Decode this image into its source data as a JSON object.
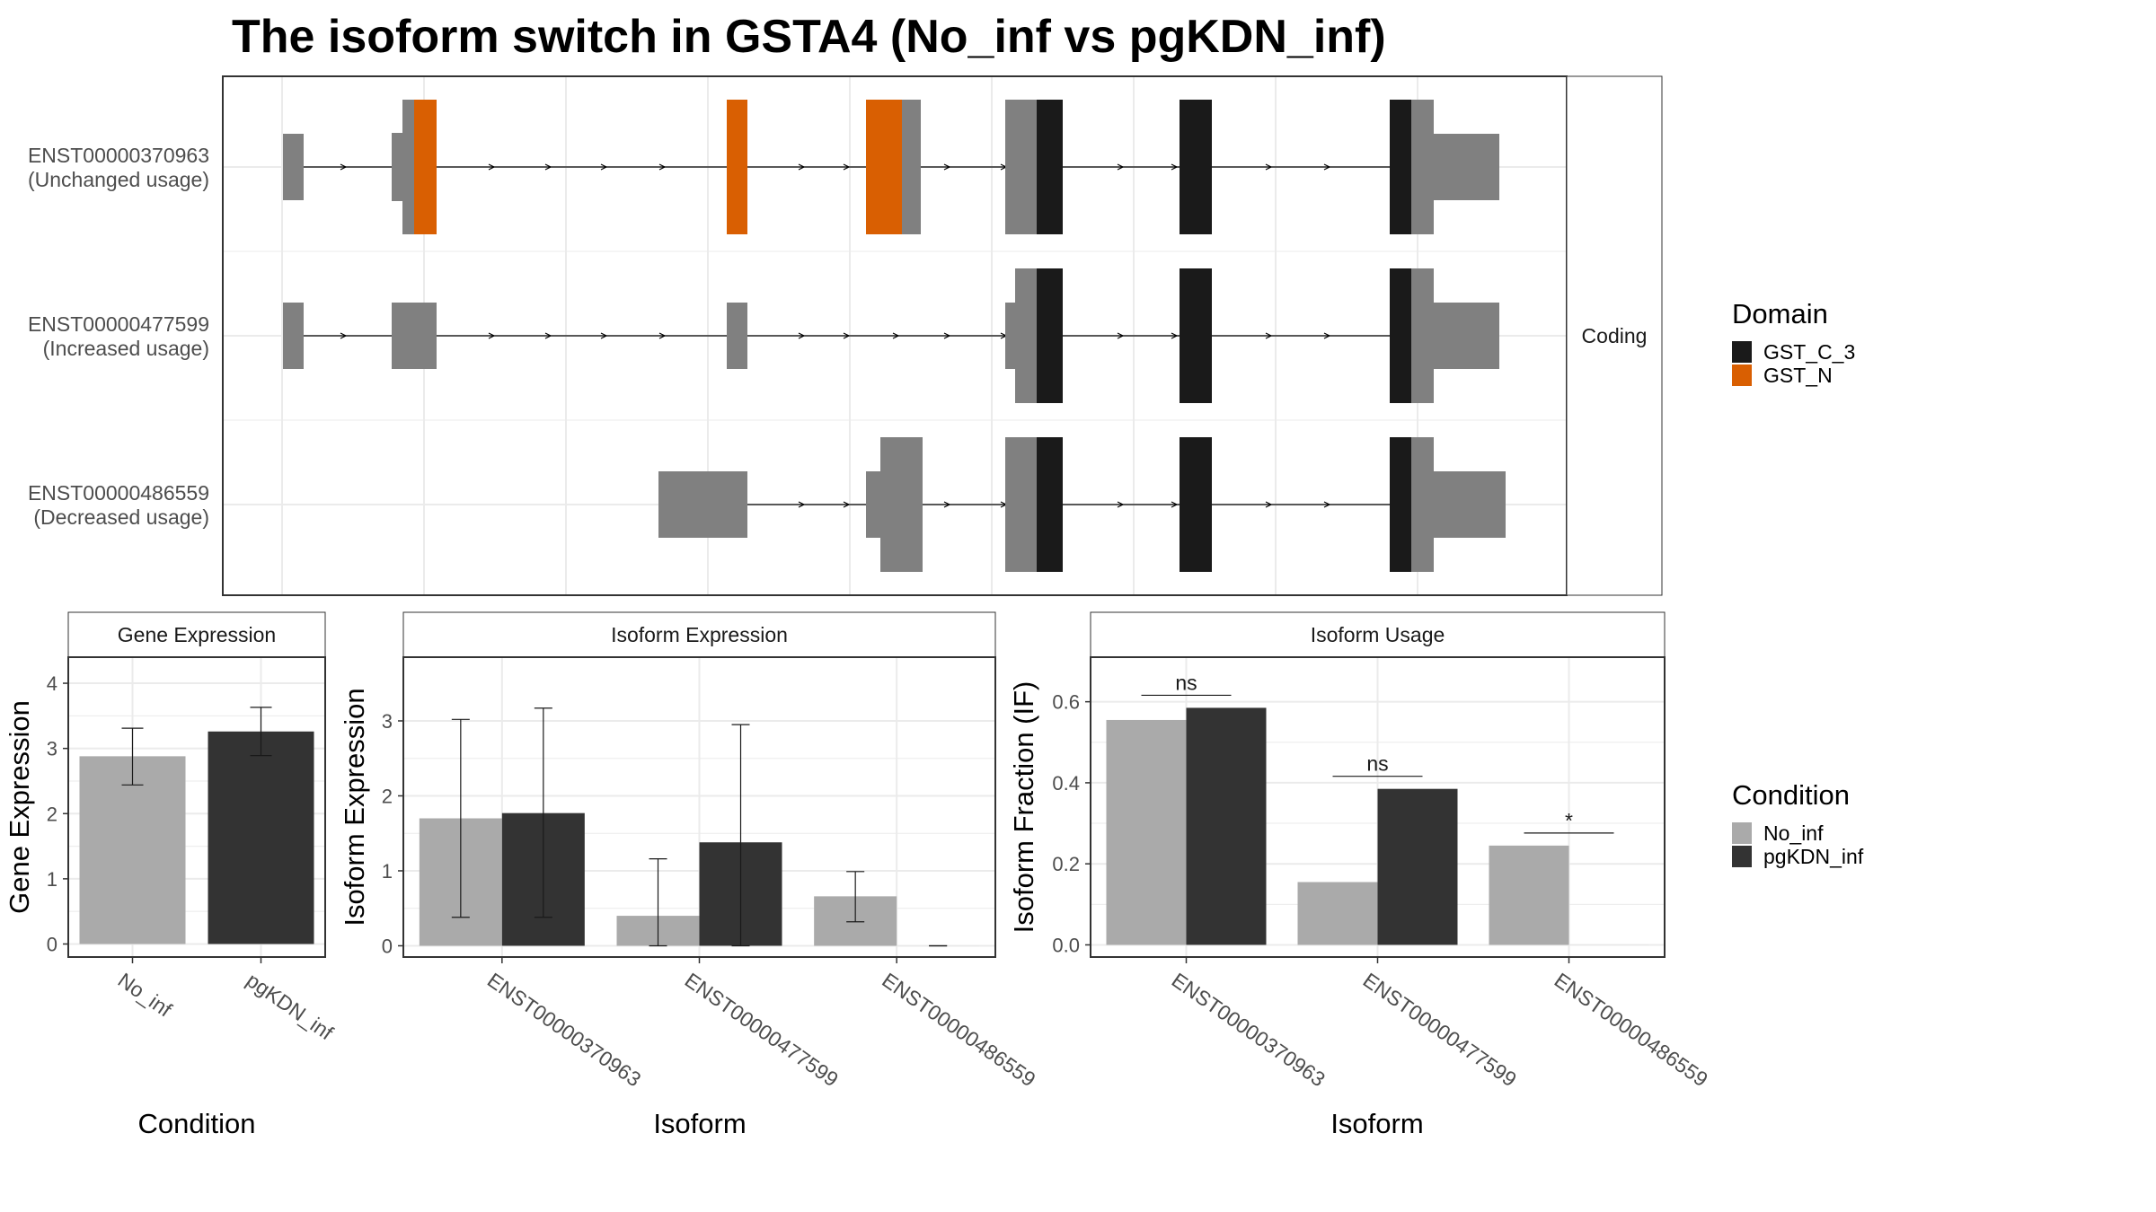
{
  "title": "The isoform switch in GSTA4 (No_inf vs pgKDN_inf)",
  "colors": {
    "gst_c_3": "#1a1a1a",
    "gst_n": "#d95f02",
    "utr": "#808080",
    "no_inf": "#aaaaaa",
    "pgkdn_inf": "#333333",
    "grid": "#ebebeb",
    "strip_bg": "#ffffff"
  },
  "chart_data": [
    {
      "type": "gene-structure",
      "strip_label": "Coding",
      "isoforms": [
        {
          "id": "ENST00000370963",
          "usage": "(Unchanged usage)"
        },
        {
          "id": "ENST00000477599",
          "usage": "(Increased usage)"
        },
        {
          "id": "ENST00000486559",
          "usage": "(Decreased usage)"
        }
      ],
      "legend": {
        "title": "Domain",
        "entries": [
          "GST_C_3",
          "GST_N"
        ]
      }
    },
    {
      "type": "bar",
      "strip_label": "Gene Expression",
      "xlabel": "Condition",
      "ylabel": "Gene Expression",
      "categories": [
        "No_inf",
        "pgKDN_inf"
      ],
      "values": [
        2.88,
        3.26
      ],
      "errors": [
        [
          2.44,
          3.31
        ],
        [
          2.89,
          3.63
        ]
      ],
      "ylim": [
        -0.2,
        4.4
      ],
      "yticks": [
        "0",
        "1",
        "2",
        "3",
        "4"
      ]
    },
    {
      "type": "bar",
      "strip_label": "Isoform Expression",
      "xlabel": "Isoform",
      "ylabel": "Isoform Expression",
      "categories": [
        "ENST00000370963",
        "ENST00000477599",
        "ENST00000486559"
      ],
      "series": [
        {
          "name": "No_inf",
          "values": [
            1.7,
            0.4,
            0.66
          ],
          "errors": [
            [
              0.38,
              3.02
            ],
            [
              0.0,
              1.16
            ],
            [
              0.32,
              0.99
            ]
          ]
        },
        {
          "name": "pgKDN_inf",
          "values": [
            1.77,
            1.38,
            0.0
          ],
          "errors": [
            [
              0.38,
              3.17
            ],
            [
              0.0,
              2.95
            ],
            [
              0.0,
              0.0
            ]
          ]
        }
      ],
      "ylim": [
        -0.15,
        3.85
      ],
      "yticks": [
        "0",
        "1",
        "2",
        "3"
      ]
    },
    {
      "type": "bar",
      "strip_label": "Isoform Usage",
      "xlabel": "Isoform",
      "ylabel": "Isoform Fraction (IF)",
      "categories": [
        "ENST00000370963",
        "ENST00000477599",
        "ENST00000486559"
      ],
      "series": [
        {
          "name": "No_inf",
          "values": [
            0.555,
            0.155,
            0.245
          ]
        },
        {
          "name": "pgKDN_inf",
          "values": [
            0.585,
            0.385,
            0.0
          ]
        }
      ],
      "significance": [
        "ns",
        "ns",
        "*"
      ],
      "ylim": [
        -0.03,
        0.71
      ],
      "yticks": [
        "0.0",
        "0.2",
        "0.4",
        "0.6"
      ]
    }
  ],
  "condition_legend": {
    "title": "Condition",
    "entries": [
      "No_inf",
      "pgKDN_inf"
    ]
  }
}
